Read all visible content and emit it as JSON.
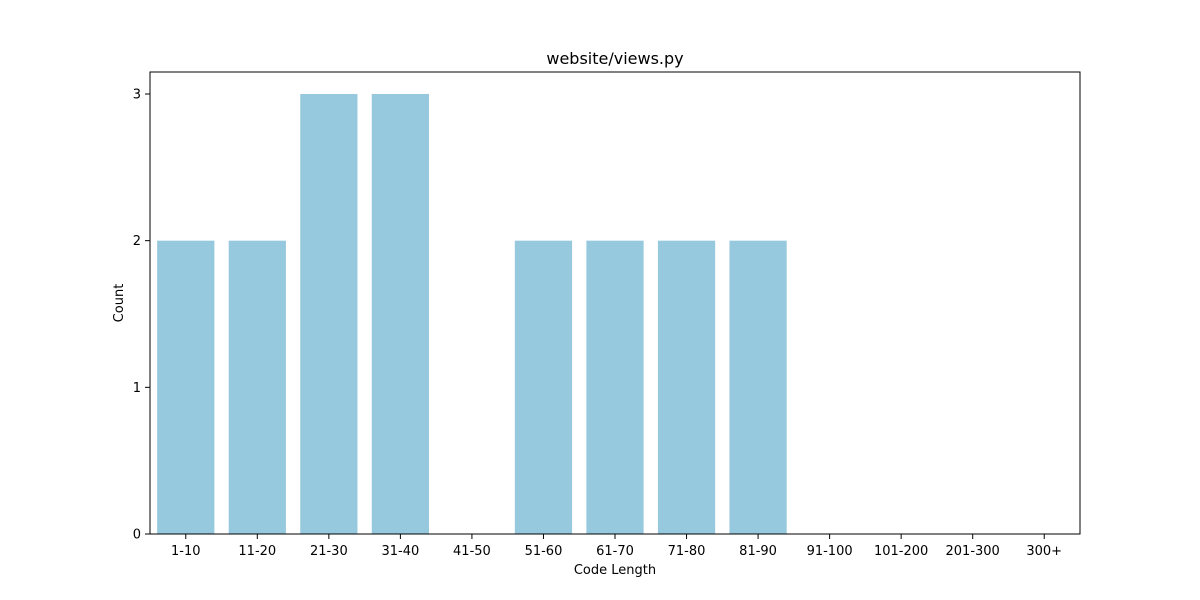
{
  "chart_data": {
    "type": "bar",
    "title": "website/views.py",
    "xlabel": "Code Length",
    "ylabel": "Count",
    "categories": [
      "1-10",
      "11-20",
      "21-30",
      "31-40",
      "41-50",
      "51-60",
      "61-70",
      "71-80",
      "81-90",
      "91-100",
      "101-200",
      "201-300",
      "300+"
    ],
    "values": [
      2,
      2,
      3,
      3,
      0,
      2,
      2,
      2,
      2,
      0,
      0,
      0,
      0
    ],
    "ylim": [
      0,
      3.15
    ],
    "yticks": [
      0,
      1,
      2,
      3
    ],
    "grid": false,
    "bar_color": "#96c9de"
  }
}
